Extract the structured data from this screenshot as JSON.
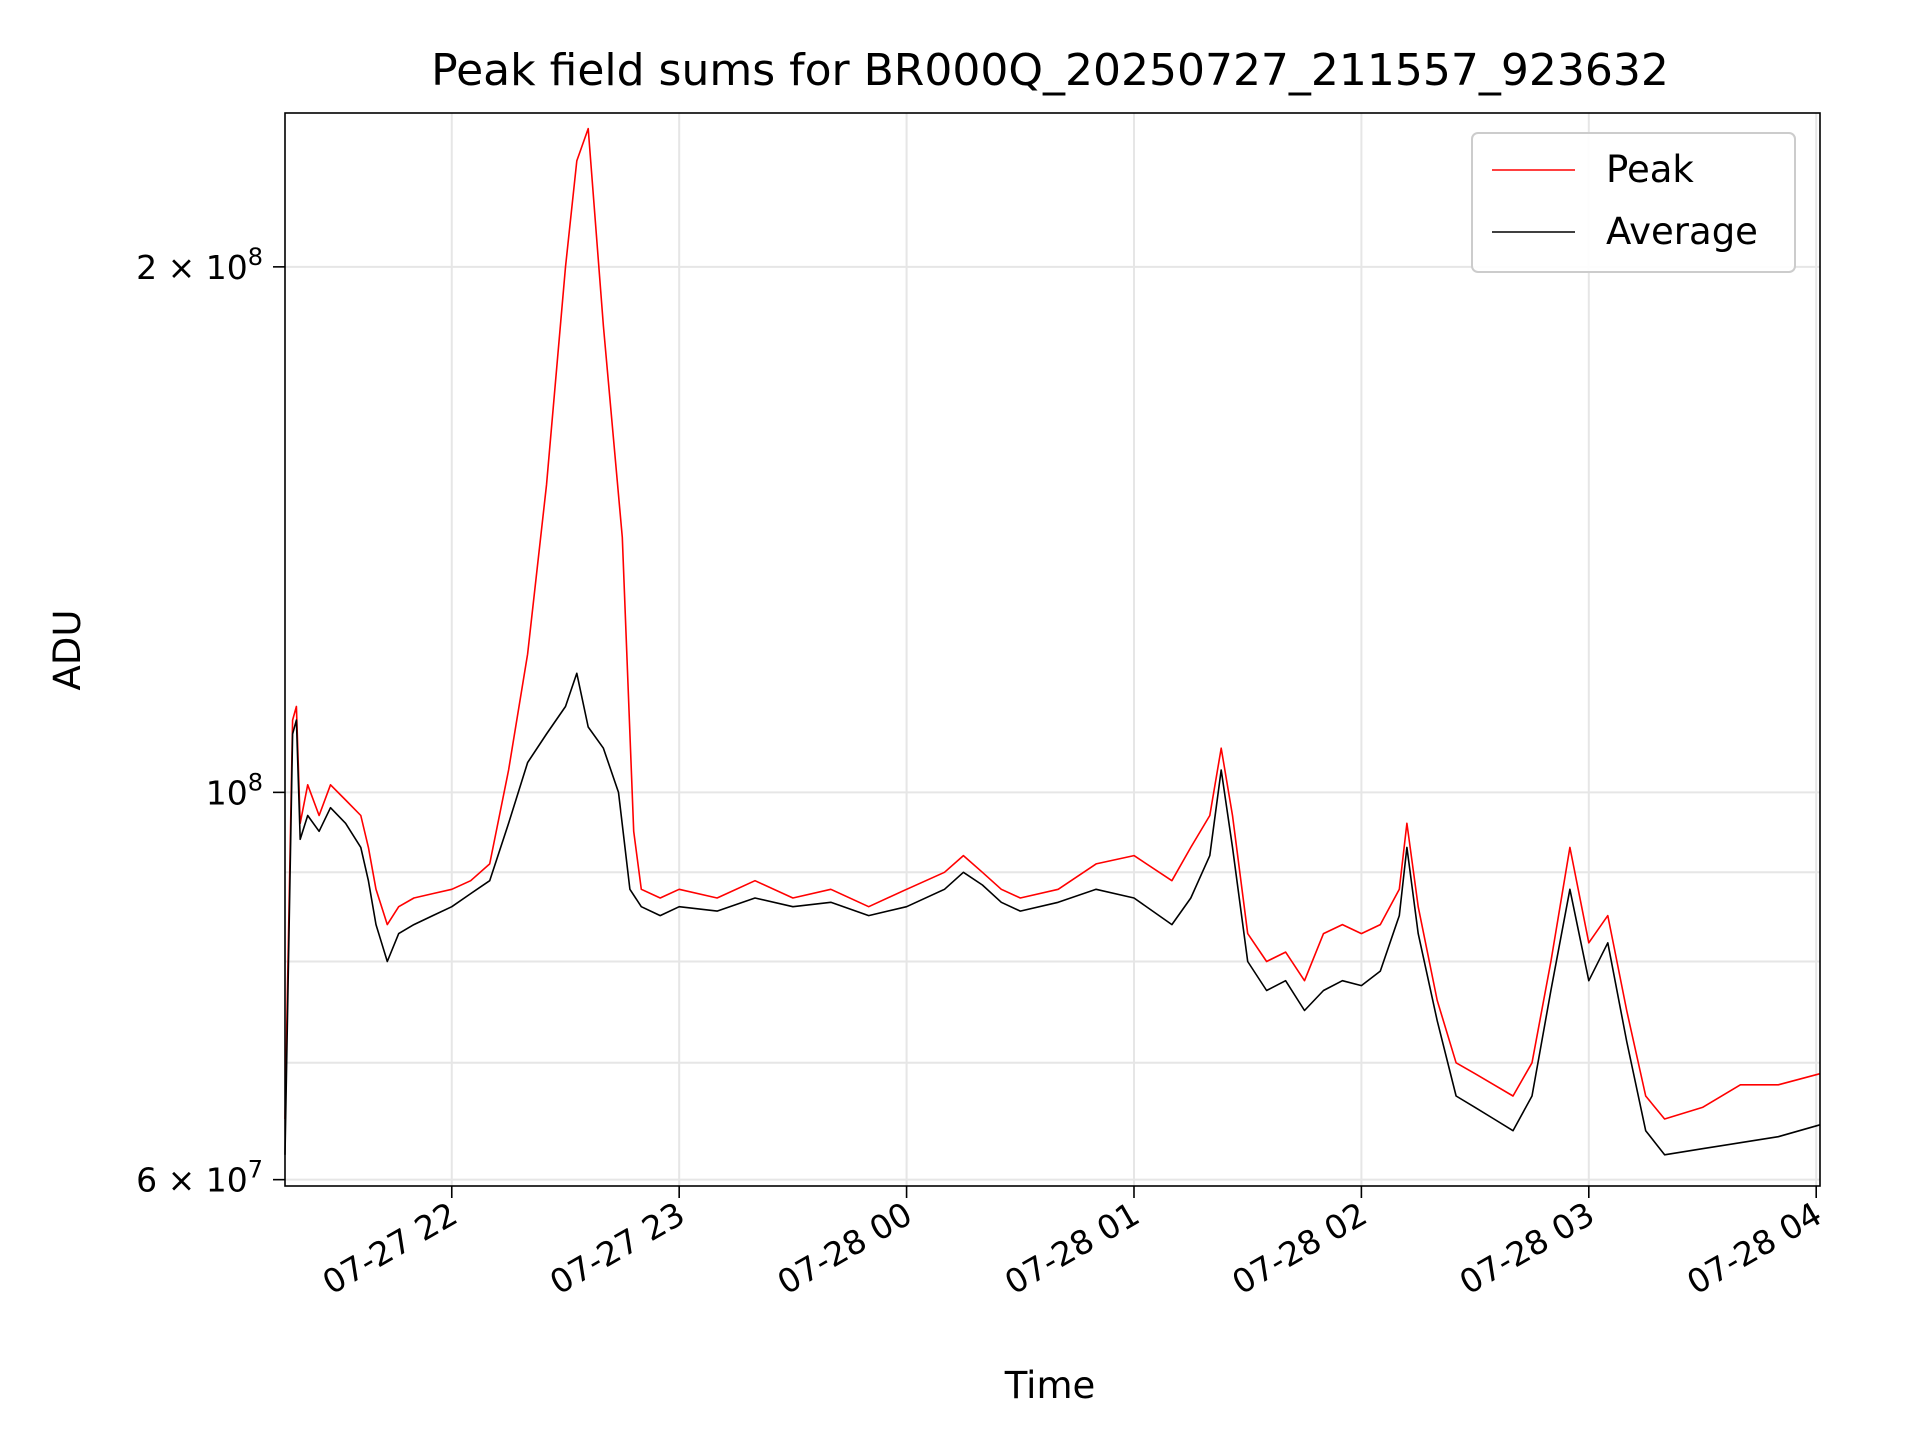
{
  "chart_data": {
    "type": "line",
    "title": "Peak field sums for BR000Q_20250727_211557_923632",
    "xlabel": "Time",
    "ylabel": "ADU",
    "y_scale": "log",
    "ylim": [
      59500000,
      245000000
    ],
    "xlim": [
      "2025-07-27 21:16",
      "2025-07-28 04:01"
    ],
    "grid": true,
    "legend_position": "top-right",
    "x_ticks": [
      {
        "t": "2025-07-27 22:00",
        "label": "07-27 22"
      },
      {
        "t": "2025-07-27 23:00",
        "label": "07-27 23"
      },
      {
        "t": "2025-07-28 00:00",
        "label": "07-28 00"
      },
      {
        "t": "2025-07-28 01:00",
        "label": "07-28 01"
      },
      {
        "t": "2025-07-28 02:00",
        "label": "07-28 02"
      },
      {
        "t": "2025-07-28 03:00",
        "label": "07-28 03"
      },
      {
        "t": "2025-07-28 04:00",
        "label": "07-28 04"
      }
    ],
    "y_ticks": [
      {
        "value": 200000000,
        "mantissa": "2",
        "times": "×",
        "base": "10",
        "exp": "8"
      },
      {
        "value": 100000000,
        "mantissa": "",
        "times": "",
        "base": "10",
        "exp": "8"
      },
      {
        "value": 60000000,
        "mantissa": "6",
        "times": "×",
        "base": "10",
        "exp": "7"
      }
    ],
    "y_minor": [
      70000000,
      80000000,
      90000000
    ],
    "series": [
      {
        "name": "Peak",
        "color": "#ff0000",
        "points": [
          [
            "2025-07-27 21:16",
            65000000
          ],
          [
            "2025-07-27 21:18",
            110000000
          ],
          [
            "2025-07-27 21:19",
            112000000
          ],
          [
            "2025-07-27 21:20",
            96000000
          ],
          [
            "2025-07-27 21:22",
            101000000
          ],
          [
            "2025-07-27 21:25",
            97000000
          ],
          [
            "2025-07-27 21:28",
            101000000
          ],
          [
            "2025-07-27 21:32",
            99000000
          ],
          [
            "2025-07-27 21:36",
            97000000
          ],
          [
            "2025-07-27 21:38",
            93000000
          ],
          [
            "2025-07-27 21:40",
            88000000
          ],
          [
            "2025-07-27 21:43",
            84000000
          ],
          [
            "2025-07-27 21:46",
            86000000
          ],
          [
            "2025-07-27 21:50",
            87000000
          ],
          [
            "2025-07-27 21:55",
            87500000
          ],
          [
            "2025-07-27 22:00",
            88000000
          ],
          [
            "2025-07-27 22:05",
            89000000
          ],
          [
            "2025-07-27 22:10",
            91000000
          ],
          [
            "2025-07-27 22:15",
            103000000
          ],
          [
            "2025-07-27 22:20",
            120000000
          ],
          [
            "2025-07-27 22:25",
            150000000
          ],
          [
            "2025-07-27 22:30",
            200000000
          ],
          [
            "2025-07-27 22:33",
            230000000
          ],
          [
            "2025-07-27 22:36",
            240000000
          ],
          [
            "2025-07-27 22:40",
            185000000
          ],
          [
            "2025-07-27 22:45",
            140000000
          ],
          [
            "2025-07-27 22:48",
            95000000
          ],
          [
            "2025-07-27 22:50",
            88000000
          ],
          [
            "2025-07-27 22:55",
            87000000
          ],
          [
            "2025-07-27 23:00",
            88000000
          ],
          [
            "2025-07-27 23:10",
            87000000
          ],
          [
            "2025-07-27 23:20",
            89000000
          ],
          [
            "2025-07-27 23:30",
            87000000
          ],
          [
            "2025-07-27 23:40",
            88000000
          ],
          [
            "2025-07-27 23:50",
            86000000
          ],
          [
            "2025-07-28 00:00",
            88000000
          ],
          [
            "2025-07-28 00:10",
            90000000
          ],
          [
            "2025-07-28 00:15",
            92000000
          ],
          [
            "2025-07-28 00:20",
            90000000
          ],
          [
            "2025-07-28 00:25",
            88000000
          ],
          [
            "2025-07-28 00:30",
            87000000
          ],
          [
            "2025-07-28 00:40",
            88000000
          ],
          [
            "2025-07-28 00:50",
            91000000
          ],
          [
            "2025-07-28 01:00",
            92000000
          ],
          [
            "2025-07-28 01:10",
            89000000
          ],
          [
            "2025-07-28 01:15",
            93000000
          ],
          [
            "2025-07-28 01:20",
            97000000
          ],
          [
            "2025-07-28 01:23",
            106000000
          ],
          [
            "2025-07-28 01:26",
            97000000
          ],
          [
            "2025-07-28 01:30",
            83000000
          ],
          [
            "2025-07-28 01:35",
            80000000
          ],
          [
            "2025-07-28 01:40",
            81000000
          ],
          [
            "2025-07-28 01:45",
            78000000
          ],
          [
            "2025-07-28 01:50",
            83000000
          ],
          [
            "2025-07-28 01:55",
            84000000
          ],
          [
            "2025-07-28 02:00",
            83000000
          ],
          [
            "2025-07-28 02:05",
            84000000
          ],
          [
            "2025-07-28 02:10",
            88000000
          ],
          [
            "2025-07-28 02:12",
            96000000
          ],
          [
            "2025-07-28 02:15",
            86000000
          ],
          [
            "2025-07-28 02:20",
            76000000
          ],
          [
            "2025-07-28 02:25",
            70000000
          ],
          [
            "2025-07-28 02:30",
            69000000
          ],
          [
            "2025-07-28 02:35",
            68000000
          ],
          [
            "2025-07-28 02:40",
            67000000
          ],
          [
            "2025-07-28 02:45",
            70000000
          ],
          [
            "2025-07-28 02:50",
            80000000
          ],
          [
            "2025-07-28 02:55",
            93000000
          ],
          [
            "2025-07-28 03:00",
            82000000
          ],
          [
            "2025-07-28 03:05",
            85000000
          ],
          [
            "2025-07-28 03:10",
            75000000
          ],
          [
            "2025-07-28 03:15",
            67000000
          ],
          [
            "2025-07-28 03:20",
            65000000
          ],
          [
            "2025-07-28 03:30",
            66000000
          ],
          [
            "2025-07-28 03:40",
            68000000
          ],
          [
            "2025-07-28 03:50",
            68000000
          ],
          [
            "2025-07-28 04:01",
            69000000
          ]
        ]
      },
      {
        "name": "Average",
        "color": "#000000",
        "points": [
          [
            "2025-07-27 21:16",
            62000000
          ],
          [
            "2025-07-27 21:18",
            108000000
          ],
          [
            "2025-07-27 21:19",
            110000000
          ],
          [
            "2025-07-27 21:20",
            94000000
          ],
          [
            "2025-07-27 21:22",
            97000000
          ],
          [
            "2025-07-27 21:25",
            95000000
          ],
          [
            "2025-07-27 21:28",
            98000000
          ],
          [
            "2025-07-27 21:32",
            96000000
          ],
          [
            "2025-07-27 21:36",
            93000000
          ],
          [
            "2025-07-27 21:38",
            89000000
          ],
          [
            "2025-07-27 21:40",
            84000000
          ],
          [
            "2025-07-27 21:43",
            80000000
          ],
          [
            "2025-07-27 21:46",
            83000000
          ],
          [
            "2025-07-27 21:50",
            84000000
          ],
          [
            "2025-07-27 21:55",
            85000000
          ],
          [
            "2025-07-27 22:00",
            86000000
          ],
          [
            "2025-07-27 22:05",
            87500000
          ],
          [
            "2025-07-27 22:10",
            89000000
          ],
          [
            "2025-07-27 22:15",
            96000000
          ],
          [
            "2025-07-27 22:20",
            104000000
          ],
          [
            "2025-07-27 22:25",
            108000000
          ],
          [
            "2025-07-27 22:30",
            112000000
          ],
          [
            "2025-07-27 22:33",
            117000000
          ],
          [
            "2025-07-27 22:36",
            109000000
          ],
          [
            "2025-07-27 22:40",
            106000000
          ],
          [
            "2025-07-27 22:44",
            100000000
          ],
          [
            "2025-07-27 22:47",
            88000000
          ],
          [
            "2025-07-27 22:50",
            86000000
          ],
          [
            "2025-07-27 22:55",
            85000000
          ],
          [
            "2025-07-27 23:00",
            86000000
          ],
          [
            "2025-07-27 23:10",
            85500000
          ],
          [
            "2025-07-27 23:20",
            87000000
          ],
          [
            "2025-07-27 23:30",
            86000000
          ],
          [
            "2025-07-27 23:40",
            86500000
          ],
          [
            "2025-07-27 23:50",
            85000000
          ],
          [
            "2025-07-28 00:00",
            86000000
          ],
          [
            "2025-07-28 00:10",
            88000000
          ],
          [
            "2025-07-28 00:15",
            90000000
          ],
          [
            "2025-07-28 00:20",
            88500000
          ],
          [
            "2025-07-28 00:25",
            86500000
          ],
          [
            "2025-07-28 00:30",
            85500000
          ],
          [
            "2025-07-28 00:40",
            86500000
          ],
          [
            "2025-07-28 00:50",
            88000000
          ],
          [
            "2025-07-28 01:00",
            87000000
          ],
          [
            "2025-07-28 01:10",
            84000000
          ],
          [
            "2025-07-28 01:15",
            87000000
          ],
          [
            "2025-07-28 01:20",
            92000000
          ],
          [
            "2025-07-28 01:23",
            103000000
          ],
          [
            "2025-07-28 01:26",
            93000000
          ],
          [
            "2025-07-28 01:30",
            80000000
          ],
          [
            "2025-07-28 01:35",
            77000000
          ],
          [
            "2025-07-28 01:40",
            78000000
          ],
          [
            "2025-07-28 01:45",
            75000000
          ],
          [
            "2025-07-28 01:50",
            77000000
          ],
          [
            "2025-07-28 01:55",
            78000000
          ],
          [
            "2025-07-28 02:00",
            77500000
          ],
          [
            "2025-07-28 02:05",
            79000000
          ],
          [
            "2025-07-28 02:10",
            85000000
          ],
          [
            "2025-07-28 02:12",
            93000000
          ],
          [
            "2025-07-28 02:15",
            83000000
          ],
          [
            "2025-07-28 02:20",
            74000000
          ],
          [
            "2025-07-28 02:25",
            67000000
          ],
          [
            "2025-07-28 02:30",
            66000000
          ],
          [
            "2025-07-28 02:35",
            65000000
          ],
          [
            "2025-07-28 02:40",
            64000000
          ],
          [
            "2025-07-28 02:45",
            67000000
          ],
          [
            "2025-07-28 02:50",
            77000000
          ],
          [
            "2025-07-28 02:55",
            88000000
          ],
          [
            "2025-07-28 03:00",
            78000000
          ],
          [
            "2025-07-28 03:05",
            82000000
          ],
          [
            "2025-07-28 03:10",
            72000000
          ],
          [
            "2025-07-28 03:15",
            64000000
          ],
          [
            "2025-07-28 03:20",
            62000000
          ],
          [
            "2025-07-28 03:30",
            62500000
          ],
          [
            "2025-07-28 03:40",
            63000000
          ],
          [
            "2025-07-28 03:50",
            63500000
          ],
          [
            "2025-07-28 04:01",
            64500000
          ]
        ]
      }
    ]
  }
}
